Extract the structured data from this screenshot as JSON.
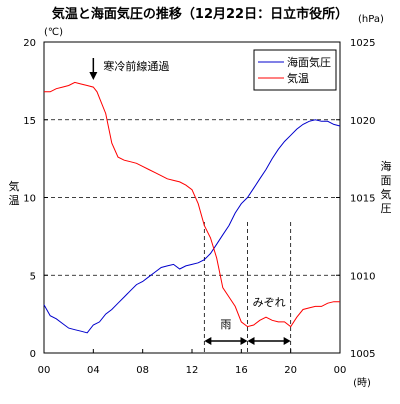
{
  "chart_data": {
    "type": "line",
    "title": "気温と海面気圧の推移（12月22日：日立市役所）",
    "xlabel": "(時)",
    "ylabel_left_unit": "(℃)",
    "ylabel_left": "気温",
    "ylabel_right_unit": "(hPa)",
    "ylabel_right": "海面気圧",
    "x_ticks": [
      "00",
      "04",
      "08",
      "12",
      "16",
      "20",
      "00"
    ],
    "xlim": [
      0,
      24
    ],
    "ylim_left": [
      0,
      20
    ],
    "ylim_right": [
      1005,
      1025
    ],
    "y_ticks_left": [
      "0",
      "5",
      "10",
      "15",
      "20"
    ],
    "y_ticks_right": [
      "1005",
      "1010",
      "1015",
      "1020",
      "1025"
    ],
    "grid": "horizontal-dashed",
    "legend_position": "top-right",
    "series": [
      {
        "name": "海面気圧",
        "axis": "right",
        "color": "#0000cc",
        "x": [
          0,
          0.5,
          1,
          1.5,
          2,
          2.5,
          3,
          3.5,
          4,
          4.5,
          5,
          5.5,
          6,
          6.5,
          7,
          7.5,
          8,
          8.5,
          9,
          9.5,
          10,
          10.5,
          11,
          11.5,
          12,
          12.5,
          13,
          13.5,
          14,
          14.5,
          15,
          15.5,
          16,
          16.5,
          17,
          17.5,
          18,
          18.5,
          19,
          19.5,
          20,
          20.5,
          21,
          21.5,
          22,
          22.5,
          23,
          23.5,
          24
        ],
        "y": [
          1008.1,
          1007.4,
          1007.2,
          1006.9,
          1006.6,
          1006.5,
          1006.4,
          1006.3,
          1006.8,
          1007.0,
          1007.5,
          1007.8,
          1008.2,
          1008.6,
          1009.0,
          1009.4,
          1009.6,
          1009.9,
          1010.2,
          1010.5,
          1010.6,
          1010.7,
          1010.4,
          1010.6,
          1010.7,
          1010.8,
          1011.0,
          1011.4,
          1012.0,
          1012.6,
          1013.2,
          1014.0,
          1014.6,
          1015.0,
          1015.6,
          1016.2,
          1016.8,
          1017.5,
          1018.1,
          1018.6,
          1019.0,
          1019.4,
          1019.7,
          1019.9,
          1020.0,
          1019.9,
          1019.9,
          1019.7,
          1019.6
        ]
      },
      {
        "name": "気温",
        "axis": "left",
        "color": "#ff0000",
        "x": [
          0,
          0.5,
          1,
          1.5,
          2,
          2.5,
          3,
          3.5,
          4,
          4.3,
          4.6,
          5,
          5.5,
          6,
          6.5,
          7,
          7.5,
          8,
          8.5,
          9,
          9.5,
          10,
          10.5,
          11,
          11.5,
          12,
          12.5,
          13,
          13.5,
          14,
          14.5,
          15,
          15.5,
          16,
          16.5,
          17,
          17.5,
          18,
          18.5,
          19,
          19.5,
          20,
          20.5,
          21,
          21.5,
          22,
          22.5,
          23,
          23.5,
          24
        ],
        "y": [
          16.8,
          16.8,
          17.0,
          17.1,
          17.2,
          17.4,
          17.3,
          17.2,
          17.1,
          16.8,
          16.2,
          15.4,
          13.5,
          12.6,
          12.4,
          12.3,
          12.2,
          12.0,
          11.8,
          11.6,
          11.4,
          11.2,
          11.1,
          11.0,
          10.8,
          10.5,
          9.6,
          8.2,
          7.4,
          6.1,
          4.2,
          3.6,
          3.0,
          2.0,
          1.7,
          1.8,
          2.1,
          2.3,
          2.1,
          2.0,
          2.0,
          1.7,
          2.3,
          2.8,
          2.9,
          3.0,
          3.0,
          3.2,
          3.3,
          3.3
        ]
      }
    ],
    "annotations": {
      "cold_front": "寒冷前線通過",
      "rain": "雨",
      "sleet": "みぞれ"
    },
    "periods": {
      "cold_front_hour": 4,
      "rain_start_hour": 13,
      "rain_end_hour": 16.5,
      "sleet_start_hour": 16.5,
      "sleet_end_hour": 20
    }
  }
}
